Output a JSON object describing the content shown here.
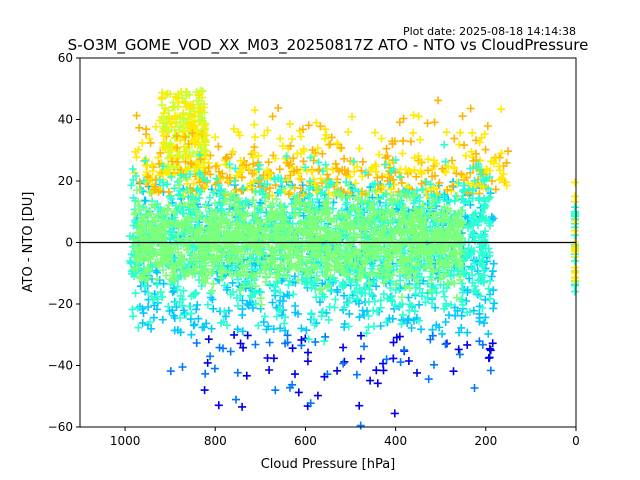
{
  "plot_date": "Plot date: 2025-08-18 14:14:38",
  "chart_data": {
    "type": "scatter",
    "title": "S-O3M_GOME_VOD_XX_M03_20250817Z ATO - NTO vs CloudPressure",
    "xlabel": "Cloud Pressure [hPa]",
    "ylabel": "ATO - NTO [DU]",
    "xlim": [
      1100,
      0
    ],
    "ylim": [
      -60,
      60
    ],
    "x_inverted": true,
    "xticks": [
      1000,
      800,
      600,
      400,
      200,
      0
    ],
    "yticks": [
      -60,
      -40,
      -20,
      0,
      20,
      40,
      60
    ],
    "xtick_labels": [
      "1000",
      "800",
      "600",
      "400",
      "200",
      "0"
    ],
    "ytick_labels": [
      "−60",
      "−40",
      "−20",
      "0",
      "20",
      "40",
      "60"
    ],
    "zero_line": 0,
    "marker": "+",
    "grid": false,
    "legend": false,
    "colors": [
      "#0000ee",
      "#0077ff",
      "#00c8ff",
      "#2affd2",
      "#7dff7a",
      "#c8ff32",
      "#ffea00",
      "#ffb400"
    ],
    "point_cloud_regions": [
      {
        "name": "dense core",
        "pressure_range": [
          980,
          200
        ],
        "delta_range": [
          -15,
          20
        ],
        "color": "#7dff7a"
      },
      {
        "name": "spread band",
        "pressure_range": [
          1000,
          180
        ],
        "delta_range": [
          -30,
          35
        ],
        "color": "#2affd2"
      },
      {
        "name": "upper high-cloud cluster",
        "pressure_range": [
          900,
          820
        ],
        "delta_range": [
          25,
          50
        ],
        "color": "#ffea00"
      },
      {
        "name": "lower tail",
        "pressure_range": [
          860,
          240
        ],
        "delta_range": [
          -60,
          -25
        ],
        "color": "#0077ff"
      },
      {
        "name": "zero-pressure column",
        "pressure_range": [
          0,
          0
        ],
        "delta_range": [
          -18,
          20
        ],
        "color": "#ffea00"
      }
    ]
  }
}
